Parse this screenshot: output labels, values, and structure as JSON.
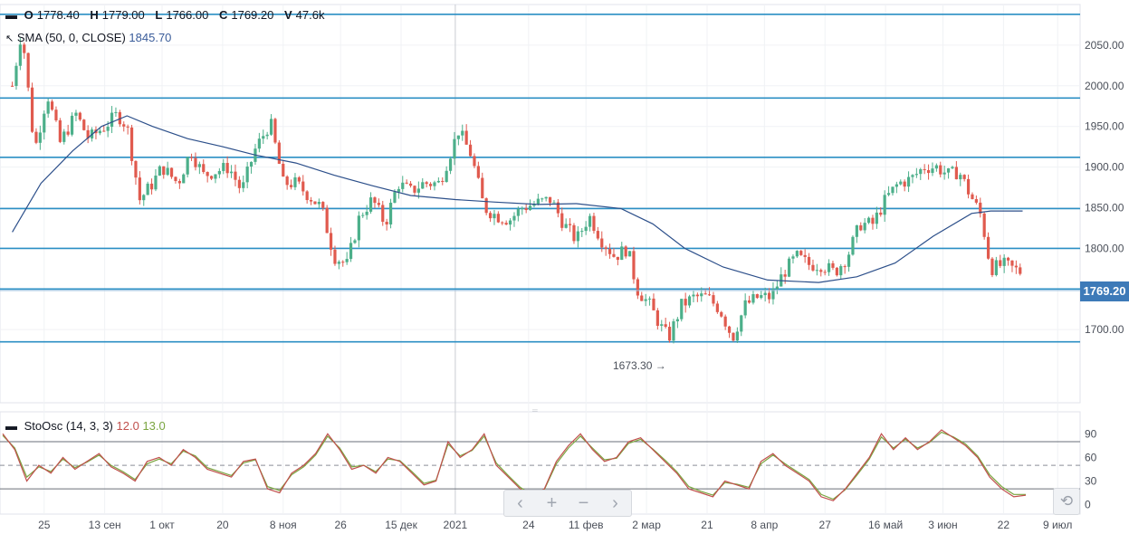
{
  "ohlcv": {
    "o_label": "O",
    "o": "1778.40",
    "h_label": "H",
    "h": "1779.00",
    "l_label": "L",
    "l": "1766.00",
    "c_label": "C",
    "c": "1769.20",
    "v_label": "V",
    "v": "47.6k"
  },
  "sma_legend": {
    "label": "SMA (50, 0, CLOSE)",
    "value": "1845.70",
    "color": "#3a5c9a"
  },
  "sto_legend": {
    "label": "StoOsc (14, 3, 3)",
    "k": "12.0",
    "d": "13.0",
    "k_color": "#c0504d",
    "d_color": "#7aa540"
  },
  "price_tag": "1769.20",
  "low_annotation": "1673.30",
  "nav": {
    "back": "‹",
    "plus": "+",
    "minus": "−",
    "fwd": "›",
    "reset": "⟲"
  },
  "colors": {
    "up": "#4caf8a",
    "down": "#e05a4e",
    "hline": "#2b8fc4",
    "sma": "#2c4f8a",
    "tag": "#3d7ab8"
  },
  "chart_data": [
    {
      "type": "candlestick",
      "title": "",
      "ylim": [
        1610,
        2100
      ],
      "y_ticks": [
        "2050.00",
        "2000.00",
        "1950.00",
        "1900.00",
        "1850.00",
        "1800.00",
        "1750.00",
        "1700.00"
      ],
      "x_ticks": [
        "25",
        "13 сен",
        "1 окт",
        "20",
        "8 ноя",
        "26",
        "15 дек",
        "2021",
        "24",
        "11 фев",
        "2 мар",
        "21",
        "8 апр",
        "27",
        "16 май",
        "3 июн",
        "22",
        "9 июл"
      ],
      "horizontal_levels": [
        2088,
        1985,
        1912,
        1849,
        1800,
        1750,
        1685
      ],
      "series": [
        {
          "name": "price (close, approx.)",
          "points": [
            [
              "Aug 15",
              2000
            ],
            [
              "Aug 18",
              2070
            ],
            [
              "Aug 22",
              1920
            ],
            [
              "Aug 26",
              1990
            ],
            [
              "Aug 30",
              1930
            ],
            [
              "Sep 4",
              1965
            ],
            [
              "Sep 8",
              1935
            ],
            [
              "Sep 13",
              1950
            ],
            [
              "Sep 17",
              1965
            ],
            [
              "Sep 20",
              1950
            ],
            [
              "Sep 24",
              1860
            ],
            [
              "Sep 28",
              1880
            ],
            [
              "Oct 1",
              1900
            ],
            [
              "Oct 6",
              1880
            ],
            [
              "Oct 10",
              1920
            ],
            [
              "Oct 14",
              1890
            ],
            [
              "Oct 18",
              1895
            ],
            [
              "Oct 22",
              1900
            ],
            [
              "Oct 26",
              1870
            ],
            [
              "Oct 30",
              1920
            ],
            [
              "Nov 4",
              1955
            ],
            [
              "Nov 8",
              1880
            ],
            [
              "Nov 12",
              1880
            ],
            [
              "Nov 16",
              1865
            ],
            [
              "Nov 20",
              1850
            ],
            [
              "Nov 24",
              1790
            ],
            [
              "Nov 28",
              1780
            ],
            [
              "Dec 2",
              1840
            ],
            [
              "Dec 6",
              1860
            ],
            [
              "Dec 10",
              1830
            ],
            [
              "Dec 14",
              1880
            ],
            [
              "Dec 18",
              1870
            ],
            [
              "Dec 22",
              1880
            ],
            [
              "Dec 27",
              1880
            ],
            [
              "Jan 2",
              1945
            ],
            [
              "Jan 6",
              1915
            ],
            [
              "Jan 10",
              1850
            ],
            [
              "Jan 14",
              1840
            ],
            [
              "Jan 18",
              1835
            ],
            [
              "Jan 22",
              1850
            ],
            [
              "Jan 26",
              1855
            ],
            [
              "Jan 31",
              1860
            ],
            [
              "Feb 4",
              1830
            ],
            [
              "Feb 8",
              1810
            ],
            [
              "Feb 12",
              1840
            ],
            [
              "Feb 16",
              1810
            ],
            [
              "Feb 20",
              1790
            ],
            [
              "Feb 24",
              1800
            ],
            [
              "Feb 27",
              1750
            ],
            [
              "Mar 3",
              1730
            ],
            [
              "Mar 7",
              1700
            ],
            [
              "Mar 9",
              1690
            ],
            [
              "Mar 13",
              1730
            ],
            [
              "Mar 17",
              1740
            ],
            [
              "Mar 21",
              1740
            ],
            [
              "Mar 25",
              1725
            ],
            [
              "Mar 29",
              1690
            ],
            [
              "Apr 2",
              1730
            ],
            [
              "Apr 6",
              1740
            ],
            [
              "Apr 10",
              1740
            ],
            [
              "Apr 14",
              1770
            ],
            [
              "Apr 18",
              1790
            ],
            [
              "Apr 22",
              1780
            ],
            [
              "Apr 26",
              1780
            ],
            [
              "Apr 30",
              1770
            ],
            [
              "May 4",
              1790
            ],
            [
              "May 8",
              1830
            ],
            [
              "May 12",
              1830
            ],
            [
              "May 16",
              1860
            ],
            [
              "May 20",
              1880
            ],
            [
              "May 24",
              1885
            ],
            [
              "May 28",
              1900
            ],
            [
              "Jun 1",
              1900
            ],
            [
              "Jun 5",
              1890
            ],
            [
              "Jun 8",
              1895
            ],
            [
              "Jun 11",
              1870
            ],
            [
              "Jun 15",
              1840
            ],
            [
              "Jun 18",
              1775
            ],
            [
              "Jun 22",
              1780
            ],
            [
              "Jun 25",
              1775
            ],
            [
              "Jun 28",
              1770
            ]
          ]
        },
        {
          "name": "SMA (50, 0, CLOSE)",
          "points": [
            [
              "Aug 15",
              1820
            ],
            [
              "Aug 24",
              1880
            ],
            [
              "Sep 3",
              1920
            ],
            [
              "Sep 12",
              1950
            ],
            [
              "Sep 20",
              1963
            ],
            [
              "Sep 28",
              1950
            ],
            [
              "Oct 9",
              1935
            ],
            [
              "Oct 20",
              1925
            ],
            [
              "Oct 30",
              1915
            ],
            [
              "Nov 12",
              1905
            ],
            [
              "Nov 24",
              1890
            ],
            [
              "Dec 6",
              1877
            ],
            [
              "Dec 18",
              1865
            ],
            [
              "Jan 1",
              1860
            ],
            [
              "Jan 13",
              1857
            ],
            [
              "Jan 27",
              1854
            ],
            [
              "Feb 8",
              1855
            ],
            [
              "Feb 22",
              1849
            ],
            [
              "Mar 4",
              1830
            ],
            [
              "Mar 14",
              1800
            ],
            [
              "Mar 26",
              1777
            ],
            [
              "Apr 9",
              1761
            ],
            [
              "Apr 25",
              1758
            ],
            [
              "May 7",
              1765
            ],
            [
              "May 19",
              1782
            ],
            [
              "May 31",
              1815
            ],
            [
              "Jun 12",
              1843
            ],
            [
              "Jun 18",
              1846
            ],
            [
              "Jun 28",
              1846
            ]
          ]
        }
      ]
    },
    {
      "type": "line",
      "title": "StoOsc (14, 3, 3)",
      "ylim": [
        -12,
        118
      ],
      "y_ticks": [
        "90",
        "60",
        "30",
        "0"
      ],
      "levels": [
        80,
        50,
        20
      ],
      "series": [
        {
          "name": "%K",
          "values": [
            90,
            70,
            30,
            50,
            40,
            60,
            45,
            55,
            65,
            48,
            40,
            30,
            55,
            60,
            50,
            70,
            60,
            45,
            40,
            35,
            55,
            58,
            20,
            15,
            40,
            50,
            65,
            90,
            70,
            45,
            50,
            40,
            60,
            55,
            40,
            25,
            30,
            80,
            60,
            70,
            90,
            50,
            35,
            20,
            10,
            20,
            55,
            75,
            90,
            70,
            55,
            60,
            80,
            85,
            70,
            55,
            40,
            20,
            15,
            10,
            30,
            25,
            20,
            55,
            65,
            50,
            40,
            30,
            10,
            5,
            20,
            40,
            60,
            90,
            70,
            85,
            70,
            80,
            95,
            85,
            75,
            60,
            35,
            20,
            10,
            12
          ]
        },
        {
          "name": "%D",
          "values": [
            88,
            72,
            35,
            48,
            42,
            58,
            47,
            54,
            63,
            50,
            42,
            32,
            52,
            58,
            52,
            68,
            62,
            47,
            42,
            37,
            53,
            57,
            23,
            18,
            38,
            48,
            63,
            87,
            72,
            48,
            50,
            42,
            58,
            56,
            42,
            27,
            31,
            77,
            62,
            69,
            87,
            53,
            37,
            22,
            12,
            19,
            52,
            72,
            87,
            72,
            57,
            59,
            78,
            83,
            71,
            57,
            42,
            23,
            17,
            12,
            28,
            26,
            22,
            52,
            63,
            52,
            42,
            32,
            13,
            7,
            19,
            38,
            58,
            86,
            72,
            83,
            72,
            79,
            92,
            86,
            77,
            62,
            38,
            23,
            13,
            13
          ]
        }
      ]
    }
  ]
}
